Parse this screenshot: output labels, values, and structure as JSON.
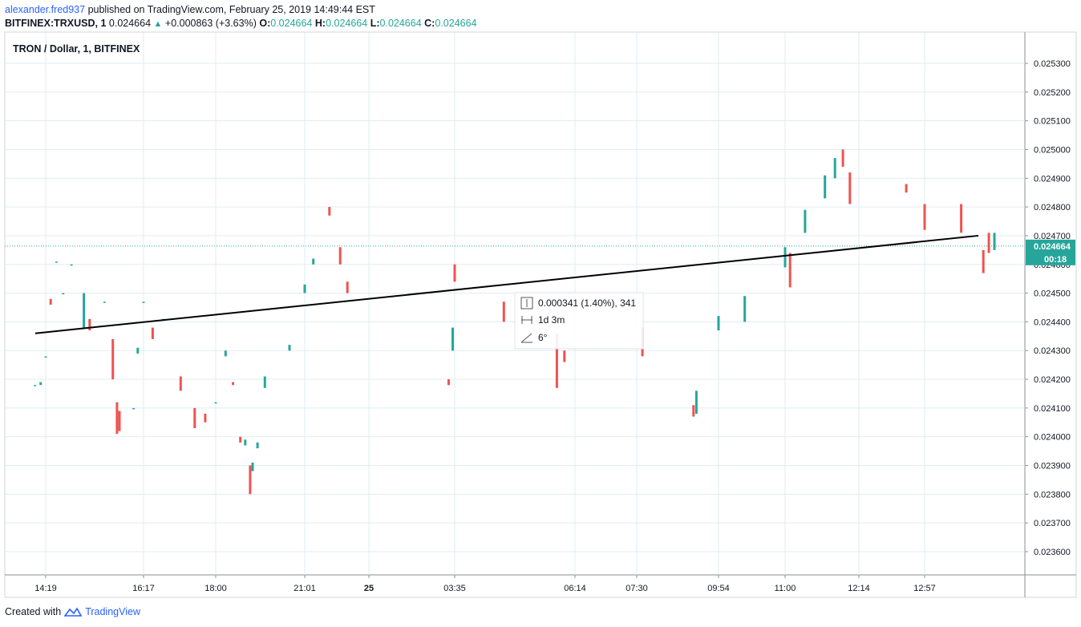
{
  "header": {
    "author": "alexander.fred937",
    "published_text": "published on TradingView.com, February 25, 2019 14:49:44 EST",
    "symbol": "BITFINEX:TRXUSD, 1",
    "last": "0.024664",
    "change": "+0.000863 (+3.63%)",
    "o_label": "O:",
    "o_value": "0.024664",
    "h_label": "H:",
    "h_value": "0.024664",
    "l_label": "L:",
    "l_value": "0.024664",
    "c_label": "C:",
    "c_value": "0.024664"
  },
  "legend_title": "TRON / Dollar, 1, BITFINEX",
  "footer": {
    "created_with": "Created with",
    "brand": "TradingView"
  },
  "price_tag": {
    "value": "0.024664",
    "countdown": "00:18"
  },
  "measure": {
    "price_change": "0.000341 (1.40%), 341",
    "time_span": "1d 3m",
    "angle": "6°"
  },
  "colors": {
    "up": "#26a69a",
    "down": "#ef5350",
    "grid": "#e1ecf2",
    "trendline": "#000000",
    "brand": "#2962ff"
  },
  "chart_data": {
    "type": "candlestick",
    "title": "TRON / Dollar, 1, BITFINEX",
    "ylim": [
      0.0235,
      0.0254
    ],
    "y_ticks": [
      "0.025300",
      "0.025200",
      "0.025100",
      "0.025000",
      "0.024900",
      "0.024800",
      "0.024700",
      "0.024600",
      "0.024500",
      "0.024400",
      "0.024300",
      "0.024200",
      "0.024100",
      "0.024000",
      "0.023900",
      "0.023800",
      "0.023700",
      "0.023600"
    ],
    "x_ticks": [
      "14:19",
      "16:17",
      "18:00",
      "21:01",
      "25",
      "03:35",
      "06:14",
      "07:30",
      "09:54",
      "11:00",
      "12:14",
      "12:57"
    ],
    "current_price": 0.024664,
    "trendline": {
      "from": [
        "14:19",
        0.02436
      ],
      "to": [
        "13:40",
        0.0247
      ]
    },
    "candles": [
      {
        "t": "14:00",
        "o": 0.02418,
        "c": 0.02418
      },
      {
        "t": "14:10",
        "o": 0.02418,
        "c": 0.02419
      },
      {
        "t": "14:19",
        "o": 0.02428,
        "c": 0.02428
      },
      {
        "t": "14:25",
        "o": 0.02448,
        "c": 0.02446
      },
      {
        "t": "14:32",
        "o": 0.02461,
        "c": 0.02461
      },
      {
        "t": "14:40",
        "o": 0.0245,
        "c": 0.0245
      },
      {
        "t": "14:50",
        "o": 0.0246,
        "c": 0.0246
      },
      {
        "t": "15:05",
        "o": 0.02438,
        "c": 0.0245
      },
      {
        "t": "15:12",
        "o": 0.02441,
        "c": 0.02437
      },
      {
        "t": "15:30",
        "o": 0.02447,
        "c": 0.02447
      },
      {
        "t": "15:40",
        "o": 0.02434,
        "c": 0.0242
      },
      {
        "t": "15:45",
        "o": 0.02412,
        "c": 0.02401
      },
      {
        "t": "15:48",
        "o": 0.02409,
        "c": 0.02402
      },
      {
        "t": "16:05",
        "o": 0.0241,
        "c": 0.0241
      },
      {
        "t": "16:10",
        "o": 0.02429,
        "c": 0.02431
      },
      {
        "t": "16:17",
        "o": 0.02447,
        "c": 0.02447
      },
      {
        "t": "16:30",
        "o": 0.02438,
        "c": 0.02434
      },
      {
        "t": "16:45",
        "o": 0.02441,
        "c": 0.02441
      },
      {
        "t": "17:10",
        "o": 0.02421,
        "c": 0.02416
      },
      {
        "t": "17:30",
        "o": 0.0241,
        "c": 0.02403
      },
      {
        "t": "17:45",
        "o": 0.02408,
        "c": 0.02405
      },
      {
        "t": "18:00",
        "o": 0.02412,
        "c": 0.02412
      },
      {
        "t": "18:20",
        "o": 0.02428,
        "c": 0.0243
      },
      {
        "t": "18:35",
        "o": 0.02419,
        "c": 0.02418
      },
      {
        "t": "18:50",
        "o": 0.024,
        "c": 0.02398
      },
      {
        "t": "19:00",
        "o": 0.02397,
        "c": 0.02399
      },
      {
        "t": "19:10",
        "o": 0.0239,
        "c": 0.0238
      },
      {
        "t": "19:15",
        "o": 0.02388,
        "c": 0.02391
      },
      {
        "t": "19:25",
        "o": 0.02396,
        "c": 0.02398
      },
      {
        "t": "19:40",
        "o": 0.02417,
        "c": 0.02421
      },
      {
        "t": "20:30",
        "o": 0.0243,
        "c": 0.02432
      },
      {
        "t": "21:01",
        "o": 0.0245,
        "c": 0.02453
      },
      {
        "t": "21:25",
        "o": 0.0246,
        "c": 0.02462
      },
      {
        "t": "22:10",
        "o": 0.0248,
        "c": 0.02477
      },
      {
        "t": "22:40",
        "o": 0.02466,
        "c": 0.0246
      },
      {
        "t": "23:00",
        "o": 0.02454,
        "c": 0.0245
      },
      {
        "t": "03:35",
        "o": 0.0246,
        "c": 0.02454
      },
      {
        "t": "03:20",
        "o": 0.0242,
        "c": 0.02418
      },
      {
        "t": "03:30",
        "o": 0.0243,
        "c": 0.02438
      },
      {
        "t": "04:40",
        "o": 0.02447,
        "c": 0.0244
      },
      {
        "t": "05:50",
        "o": 0.02436,
        "c": 0.02417
      },
      {
        "t": "06:00",
        "o": 0.0243,
        "c": 0.02426
      },
      {
        "t": "07:40",
        "o": 0.02438,
        "c": 0.02428
      },
      {
        "t": "09:10",
        "o": 0.02411,
        "c": 0.02407
      },
      {
        "t": "09:15",
        "o": 0.02408,
        "c": 0.02416
      },
      {
        "t": "09:54",
        "o": 0.02437,
        "c": 0.02442
      },
      {
        "t": "10:20",
        "o": 0.0244,
        "c": 0.02449
      },
      {
        "t": "11:00",
        "o": 0.02459,
        "c": 0.02466
      },
      {
        "t": "11:05",
        "o": 0.02464,
        "c": 0.02452
      },
      {
        "t": "11:20",
        "o": 0.02471,
        "c": 0.02479
      },
      {
        "t": "11:40",
        "o": 0.02483,
        "c": 0.02491
      },
      {
        "t": "11:50",
        "o": 0.0249,
        "c": 0.02497
      },
      {
        "t": "11:58",
        "o": 0.025,
        "c": 0.02494
      },
      {
        "t": "12:05",
        "o": 0.02492,
        "c": 0.02481
      },
      {
        "t": "12:45",
        "o": 0.02488,
        "c": 0.02485
      },
      {
        "t": "12:57",
        "o": 0.02481,
        "c": 0.02472
      },
      {
        "t": "13:30",
        "o": 0.02481,
        "c": 0.02471
      },
      {
        "t": "13:50",
        "o": 0.02465,
        "c": 0.02457
      },
      {
        "t": "13:55",
        "o": 0.02471,
        "c": 0.02464
      },
      {
        "t": "14:00",
        "o": 0.02465,
        "c": 0.02471
      }
    ]
  }
}
